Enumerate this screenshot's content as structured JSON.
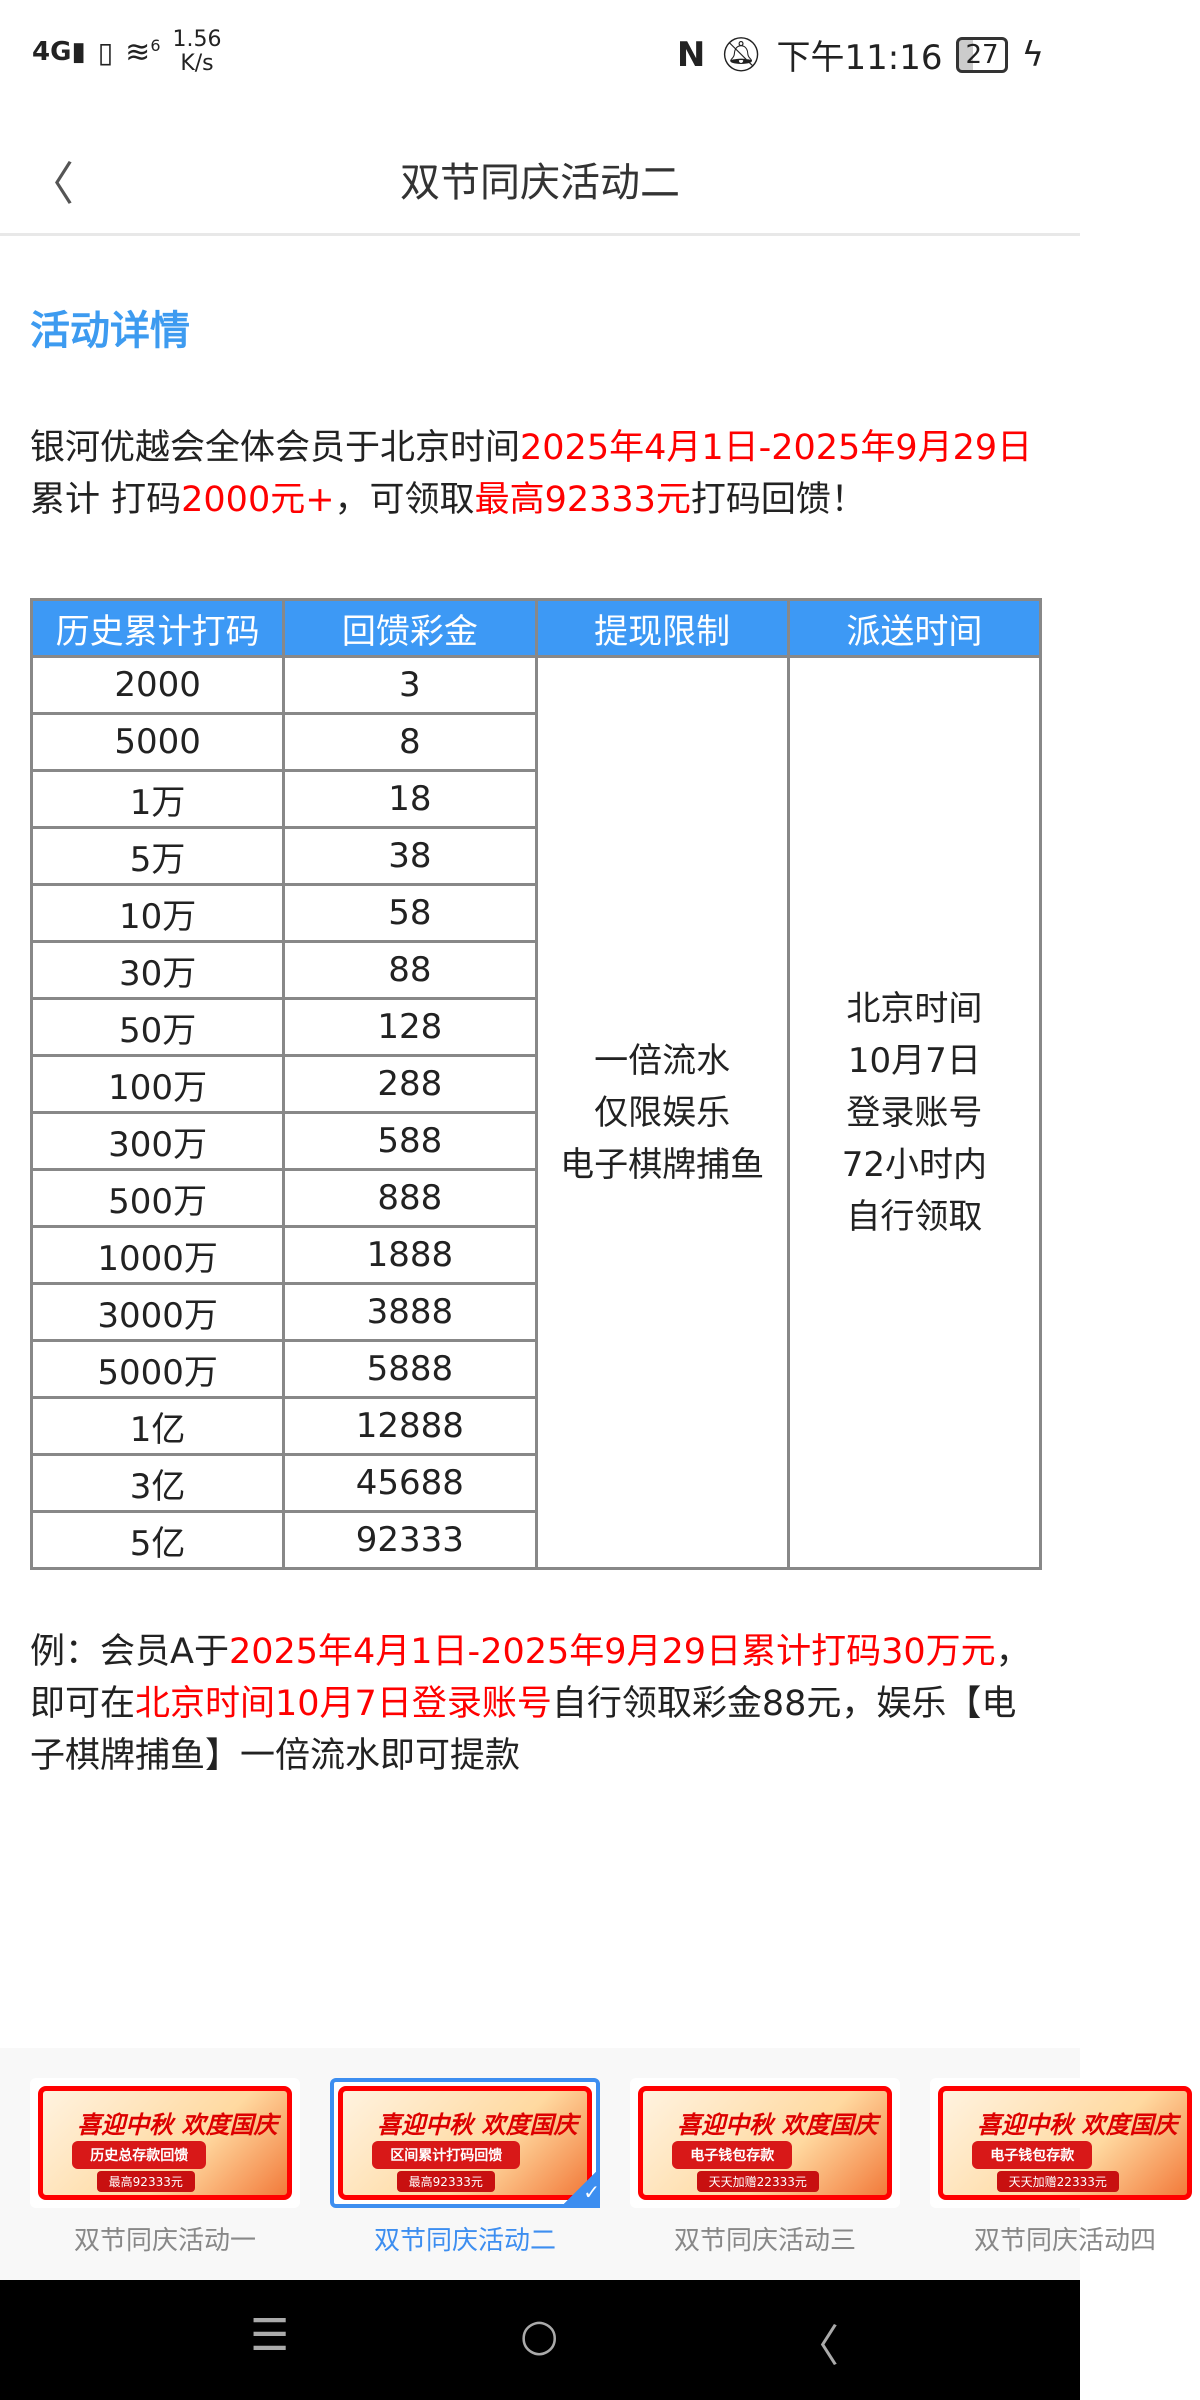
{
  "status": {
    "network": "4G",
    "wifi": "6",
    "speed": "1.56",
    "speed_unit": "K/s",
    "time": "下午11:16",
    "battery": "27"
  },
  "header": {
    "title": "双节同庆活动二",
    "back_icon": "chevron-left-icon"
  },
  "section_title": "活动详情",
  "intro": {
    "p1": "银河优越会全体会员于北京时间",
    "p2": "2025年4月1日-2025年9月29日",
    "p3": "累计 打码",
    "p4": "2000元+",
    "p5": "，可领取",
    "p6": "最高92333元",
    "p7": "打码回馈！"
  },
  "table": {
    "headers": [
      "历史累计打码",
      "回馈彩金",
      "提现限制",
      "派送时间"
    ],
    "rows": [
      [
        "2000",
        "3"
      ],
      [
        "5000",
        "8"
      ],
      [
        "1万",
        "18"
      ],
      [
        "5万",
        "38"
      ],
      [
        "10万",
        "58"
      ],
      [
        "30万",
        "88"
      ],
      [
        "50万",
        "128"
      ],
      [
        "100万",
        "288"
      ],
      [
        "300万",
        "588"
      ],
      [
        "500万",
        "888"
      ],
      [
        "1000万",
        "1888"
      ],
      [
        "3000万",
        "3888"
      ],
      [
        "5000万",
        "5888"
      ],
      [
        "1亿",
        "12888"
      ],
      [
        "3亿",
        "45688"
      ],
      [
        "5亿",
        "92333"
      ]
    ],
    "limit": [
      "一倍流水",
      "仅限娱乐",
      "电子棋牌捕鱼"
    ],
    "delivery": [
      "北京时间",
      "10月7日",
      "登录账号",
      "72小时内",
      "自行领取"
    ]
  },
  "example": {
    "p1": "例：会员A于",
    "p2": "2025年4月1日-2025年9月29日累计打码30万元",
    "p3": "，即可在",
    "p4": "北京时间10月7日登录账号",
    "p5": "自行领取彩金88元，娱乐【电子棋牌捕鱼】一倍流水即可提款"
  },
  "thumbs": [
    {
      "label": "双节同庆活动一",
      "banner_title": "喜迎中秋 欢度国庆",
      "banner_sub": "历史总存款回馈",
      "banner_amount": "最高92333元",
      "selected": false
    },
    {
      "label": "双节同庆活动二",
      "banner_title": "喜迎中秋 欢度国庆",
      "banner_sub": "区间累计打码回馈",
      "banner_amount": "最高92333元",
      "selected": true
    },
    {
      "label": "双节同庆活动三",
      "banner_title": "喜迎中秋 欢度国庆",
      "banner_sub": "电子钱包存款",
      "banner_amount": "天天加赠22333元",
      "selected": false
    },
    {
      "label": "双节同庆活动四",
      "banner_title": "喜迎中秋 欢度国庆",
      "banner_sub": "电子钱包存款",
      "banner_amount": "天天加赠22333元",
      "selected": false
    }
  ],
  "colors": {
    "accent": "#3d99f5",
    "highlight": "#ff0000",
    "nav_bg": "#000000"
  }
}
